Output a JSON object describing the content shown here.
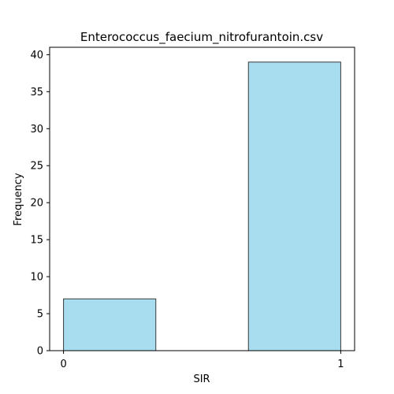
{
  "chart_data": {
    "type": "bar",
    "title": "Enterococcus_faecium_nitrofurantoin.csv",
    "xlabel": "SIR",
    "ylabel": "Frequency",
    "bins": [
      {
        "from": 0.0,
        "to": 0.333,
        "value": 7
      },
      {
        "from": 0.667,
        "to": 1.0,
        "value": 39
      }
    ],
    "xlim": [
      -0.05,
      1.05
    ],
    "ylim": [
      0,
      41
    ],
    "xticks": [
      0,
      1
    ],
    "yticks": [
      0,
      5,
      10,
      15,
      20,
      25,
      30,
      35,
      40
    ],
    "grid": false,
    "bar_color": "#a8dcef",
    "bar_edge_color": "#3a3a3a"
  }
}
